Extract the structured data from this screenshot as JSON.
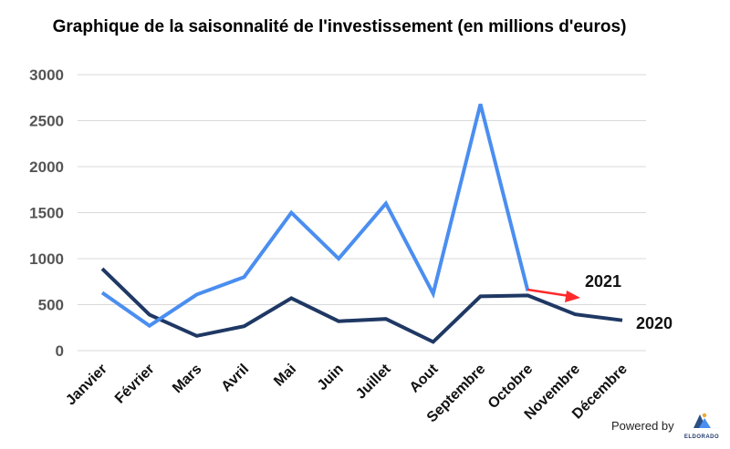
{
  "chart_data": {
    "type": "line",
    "title": "Graphique de la saisonnalité de l'investissement (en millions d'euros)",
    "xlabel": "",
    "ylabel": "",
    "categories": [
      "Janvier",
      "Février",
      "Mars",
      "Avril",
      "Mai",
      "Juin",
      "Juillet",
      "Aout",
      "Septembre",
      "Octobre",
      "Novembre",
      "Décembre"
    ],
    "ylim": [
      0,
      3000
    ],
    "yticks": [
      "0",
      "500",
      "1000",
      "1500",
      "2000",
      "2500",
      "3000"
    ],
    "grid": true,
    "series": [
      {
        "name": "2021",
        "color": "#4a8ef0",
        "values": [
          630,
          270,
          610,
          800,
          1500,
          1000,
          1600,
          620,
          2680,
          650,
          null,
          null
        ]
      },
      {
        "name": "2020",
        "color": "#1f3864",
        "values": [
          890,
          390,
          160,
          265,
          570,
          320,
          345,
          95,
          590,
          600,
          395,
          330
        ]
      }
    ],
    "annotation": {
      "type": "arrow",
      "color": "#ff2a2a",
      "points_to_series": "2021"
    }
  },
  "footer": {
    "powered_by": "Powered by",
    "brand": "ELDORADO"
  }
}
